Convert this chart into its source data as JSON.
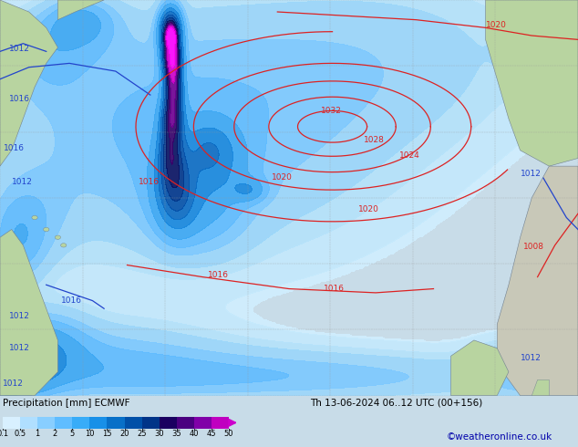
{
  "title_left": "Precipitation [mm] ECMWF",
  "title_right": "Th 13-06-2024 06..12 UTC (00+156)",
  "watermark": "©weatheronline.co.uk",
  "colorbar_values": [
    0.1,
    0.5,
    1,
    2,
    5,
    10,
    15,
    20,
    25,
    30,
    35,
    40,
    45,
    50
  ],
  "colorbar_colors": [
    "#c8eeff",
    "#a0dcff",
    "#78ccff",
    "#50bcff",
    "#28aaff",
    "#1090e8",
    "#0870c8",
    "#0050a8",
    "#003088",
    "#180050",
    "#480068",
    "#780090",
    "#b800b8",
    "#ff00ff"
  ],
  "ocean_color": "#d8eaf4",
  "land_color_green": "#b8d4a0",
  "land_color_grey": "#c8c8b8",
  "grid_color": "#999999",
  "isobar_red": "#dd2222",
  "isobar_blue": "#2244cc",
  "fig_bg": "#c8dce8",
  "bar_bg": "#e8e8e8",
  "figsize": [
    6.34,
    4.9
  ],
  "dpi": 100
}
